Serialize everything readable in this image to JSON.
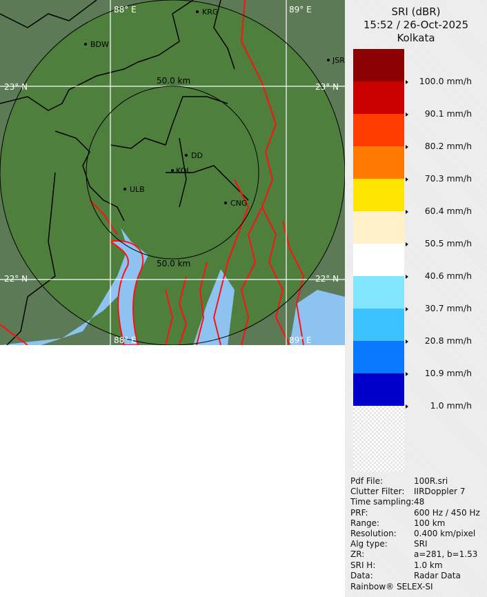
{
  "legend": {
    "title": "SRI (dBR)",
    "datetime": "15:52 / 26-Oct-2025",
    "site": "Kolkata",
    "colors": [
      "#8b0000",
      "#c80000",
      "#ff3c00",
      "#ff7800",
      "#ffe400",
      "#fff0c8",
      "#ffffff",
      "#82e6ff",
      "#3cc3ff",
      "#0a78ff",
      "#0000c8",
      "checker"
    ],
    "labels": [
      "100.0 mm/h",
      "90.1 mm/h",
      "80.2 mm/h",
      "70.3 mm/h",
      "60.4 mm/h",
      "50.5 mm/h",
      "40.6 mm/h",
      "30.7 mm/h",
      "20.8 mm/h",
      "10.9 mm/h",
      "1.0 mm/h"
    ]
  },
  "info": [
    {
      "key": "Pdf File:",
      "value": "100R.sri"
    },
    {
      "key": "Clutter Filter:",
      "value": "IIRDoppler 7"
    },
    {
      "key": "Time sampling:",
      "value": "48"
    },
    {
      "key": "PRF:",
      "value": "600 Hz / 450 Hz"
    },
    {
      "key": "Range:",
      "value": "100 km"
    },
    {
      "key": "Resolution:",
      "value": "0.400 km/pixel"
    },
    {
      "key": "Alg type:",
      "value": "SRI"
    },
    {
      "key": "ZR:",
      "value": "a=281, b=1.53"
    },
    {
      "key": "SRI H:",
      "value": "1.0 km"
    },
    {
      "key": "Data:",
      "value": "Radar Data"
    }
  ],
  "footer": "Rainbow® SELEX-SI",
  "map": {
    "land_color": "#4f7f3c",
    "outside_color": "#5b7a55",
    "water_color": "#8ec2f0",
    "river_color": "#ff1010",
    "grid": {
      "lon_labels": [
        "88° E",
        "89° E"
      ],
      "lat_labels": [
        "23° N",
        "22° N"
      ]
    },
    "rings": [
      "50.0 km"
    ],
    "cities": [
      {
        "name": "BDW"
      },
      {
        "name": "KRG"
      },
      {
        "name": "JSR"
      },
      {
        "name": "DD"
      },
      {
        "name": "KOL"
      },
      {
        "name": "ULB"
      },
      {
        "name": "CNG"
      }
    ]
  }
}
